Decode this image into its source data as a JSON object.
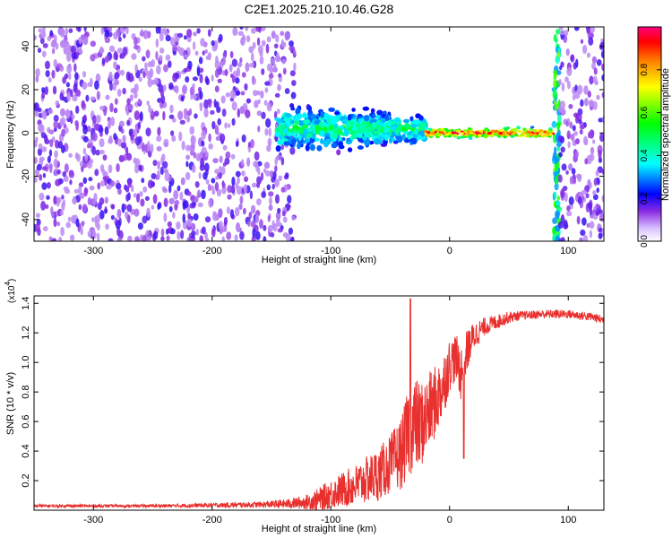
{
  "title": "C2E1.2025.210.10.46.G28",
  "colors": {
    "snr_line": "#e8302e",
    "spectrum_cloud": "#7a12ee",
    "axis": "#000000"
  },
  "chart_data": [
    {
      "type": "heatmap",
      "title": "C2E1.2025.210.10.46.G28",
      "xlabel": "Height of straight line (km)",
      "ylabel": "Frequency (Hz)",
      "xlim": [
        -350,
        130
      ],
      "ylim": [
        -50,
        49
      ],
      "xticks": [
        -300,
        -200,
        -100,
        0,
        100
      ],
      "xtick_labels": [
        "-300",
        "-200",
        "-100",
        "0",
        "100"
      ],
      "yticks": [
        -40,
        -20,
        0,
        20,
        40
      ],
      "ytick_labels": [
        "-40",
        "-20",
        "0",
        "20",
        "40"
      ],
      "grid": false,
      "colorbar": {
        "label": "Normalized spectral amplitude",
        "range": [
          0.0,
          1.0
        ],
        "ticks": [
          0.0,
          0.2,
          0.4,
          0.6,
          0.8
        ],
        "tick_labels": [
          "0.0",
          "0.2",
          "0.4",
          "0.6",
          "0.8"
        ],
        "colormap": "rainbow (white, violet, blue, cyan, green, yellow, red)"
      },
      "regions": [
        {
          "name": "noise",
          "x_range": [
            -350,
            -130
          ],
          "y_range": [
            -50,
            49
          ],
          "amplitude": 0.15
        },
        {
          "name": "onset",
          "x_range": [
            -145,
            -20
          ],
          "center_hz": 2,
          "spread_hz": 12,
          "amplitude": 0.45
        },
        {
          "name": "signal",
          "x_range": [
            -20,
            88
          ],
          "center_hz": 0,
          "spread_hz": 2,
          "amplitude": 0.9
        },
        {
          "name": "edge",
          "x_range": [
            88,
            93
          ],
          "y_range": [
            -50,
            49
          ],
          "amplitude": 0.5
        },
        {
          "name": "noise",
          "x_range": [
            93,
            130
          ],
          "y_range": [
            -50,
            49
          ],
          "amplitude": 0.15
        }
      ]
    },
    {
      "type": "line",
      "xlabel": "Height of straight line (km)",
      "ylabel": "SNR (10 * v/v)",
      "y_scale_label": "(x10",
      "y_scale_exp": "4",
      "y_scale_close": ")",
      "xlim": [
        -350,
        130
      ],
      "ylim": [
        0,
        1.45
      ],
      "xticks": [
        -300,
        -200,
        -100,
        0,
        100
      ],
      "xtick_labels": [
        "-300",
        "-200",
        "-100",
        "0",
        "100"
      ],
      "yticks": [
        0.2,
        0.4,
        0.6,
        0.8,
        1.0,
        1.2,
        1.4
      ],
      "ytick_labels": [
        "0.2",
        "0.4",
        "0.6",
        "0.8",
        "1.0",
        "1.2",
        "1.4"
      ],
      "grid": false,
      "series": [
        {
          "color": "#e8302e",
          "x": [
            -350,
            -300,
            -250,
            -200,
            -160,
            -140,
            -120,
            -110,
            -100,
            -90,
            -80,
            -70,
            -60,
            -50,
            -40,
            -35,
            -30,
            -25,
            -20,
            -15,
            -10,
            -5,
            0,
            5,
            10,
            15,
            20,
            25,
            30,
            40,
            50,
            60,
            80,
            100,
            120,
            130
          ],
          "y": [
            0.03,
            0.03,
            0.03,
            0.035,
            0.04,
            0.045,
            0.06,
            0.08,
            0.12,
            0.15,
            0.18,
            0.22,
            0.26,
            0.33,
            0.42,
            0.55,
            0.62,
            0.6,
            0.65,
            0.72,
            0.78,
            0.88,
            1.0,
            1.05,
            0.95,
            1.1,
            1.18,
            1.22,
            1.25,
            1.28,
            1.31,
            1.32,
            1.33,
            1.33,
            1.31,
            1.29
          ],
          "noise": [
            0.01,
            0.01,
            0.01,
            0.015,
            0.02,
            0.03,
            0.05,
            0.08,
            0.1,
            0.12,
            0.14,
            0.16,
            0.18,
            0.2,
            0.25,
            0.3,
            0.32,
            0.3,
            0.28,
            0.26,
            0.24,
            0.22,
            0.18,
            0.16,
            0.2,
            0.14,
            0.1,
            0.08,
            0.06,
            0.05,
            0.04,
            0.03,
            0.03,
            0.03,
            0.03,
            0.03
          ],
          "peaks": [
            {
              "x": -33,
              "y": 1.43
            },
            {
              "x": 12,
              "y": 0.35
            }
          ]
        }
      ]
    }
  ]
}
